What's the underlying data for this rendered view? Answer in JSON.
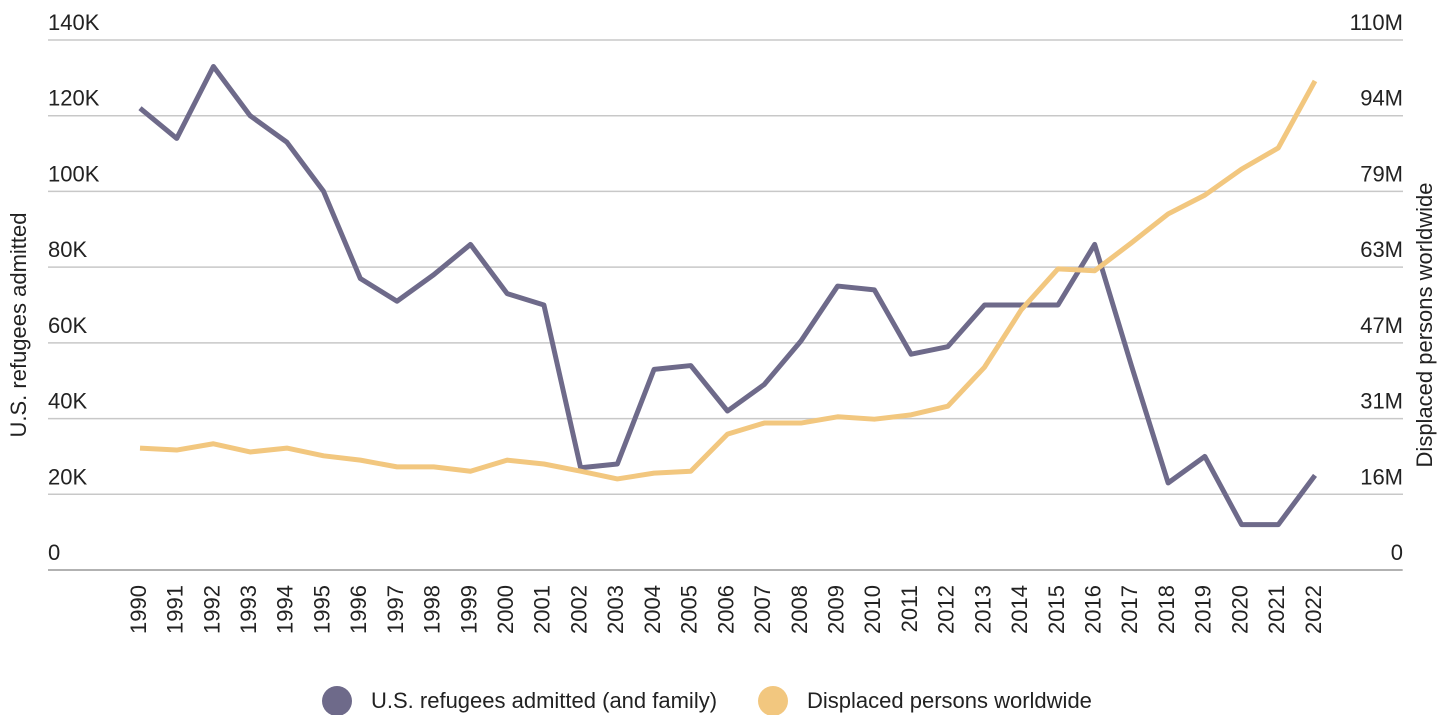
{
  "chart_data": {
    "type": "line",
    "categories": [
      "1990",
      "1991",
      "1992",
      "1993",
      "1994",
      "1995",
      "1996",
      "1997",
      "1998",
      "1999",
      "2000",
      "2001",
      "2002",
      "2003",
      "2004",
      "2005",
      "2006",
      "2007",
      "2008",
      "2009",
      "2010",
      "2011",
      "2012",
      "2013",
      "2014",
      "2015",
      "2016",
      "2017",
      "2018",
      "2019",
      "2020",
      "2021",
      "2022"
    ],
    "y_label": "U.S. refugees admitted",
    "y2_label": "Displaced persons worldwide",
    "ylim": [
      0,
      140000
    ],
    "yticks": [
      0,
      {
        "value": 20000,
        "label": "20K"
      },
      {
        "value": 40000,
        "label": "40K"
      },
      {
        "value": 60000,
        "label": "60K"
      },
      {
        "value": 80000,
        "label": "80K"
      },
      {
        "value": 100000,
        "label": "100K"
      },
      {
        "value": 120000,
        "label": "120K"
      },
      {
        "value": 140000,
        "label": "140K"
      }
    ],
    "y2lim": [
      0,
      110
    ],
    "y2ticks": [
      0,
      {
        "value": 15.714,
        "label": "16M"
      },
      {
        "value": 31.429,
        "label": "31M"
      },
      {
        "value": 47.143,
        "label": "47M"
      },
      {
        "value": 62.857,
        "label": "63M"
      },
      {
        "value": 78.571,
        "label": "79M"
      },
      {
        "value": 94.286,
        "label": "94M"
      },
      {
        "value": 110,
        "label": "110M"
      }
    ],
    "grid": true,
    "legend": "bottom",
    "series": [
      {
        "name": "U.S. refugees admitted (and family)",
        "color": "#6e6a8a",
        "values": [
          122000,
          114000,
          133000,
          120000,
          113000,
          100000,
          77000,
          71000,
          78000,
          86000,
          73000,
          70000,
          27000,
          28000,
          53000,
          54000,
          42000,
          49000,
          60500,
          75000,
          74000,
          57000,
          59000,
          70000,
          70000,
          70000,
          86000,
          54000,
          23000,
          30000,
          12000,
          12000,
          25000
        ]
      },
      {
        "name": "Displaced persons worldwide",
        "color": "#f2c77f",
        "axis": "y2",
        "values": [
          25.3,
          24.9,
          26.2,
          24.5,
          25.3,
          23.7,
          22.8,
          21.4,
          21.4,
          20.5,
          22.8,
          22.0,
          20.5,
          18.9,
          20.1,
          20.5,
          28.2,
          30.5,
          30.5,
          31.8,
          31.3,
          32.2,
          34.0,
          42.1,
          54.0,
          62.5,
          62.1,
          67.9,
          73.9,
          77.8,
          83.2,
          87.6,
          101.5
        ]
      }
    ]
  }
}
